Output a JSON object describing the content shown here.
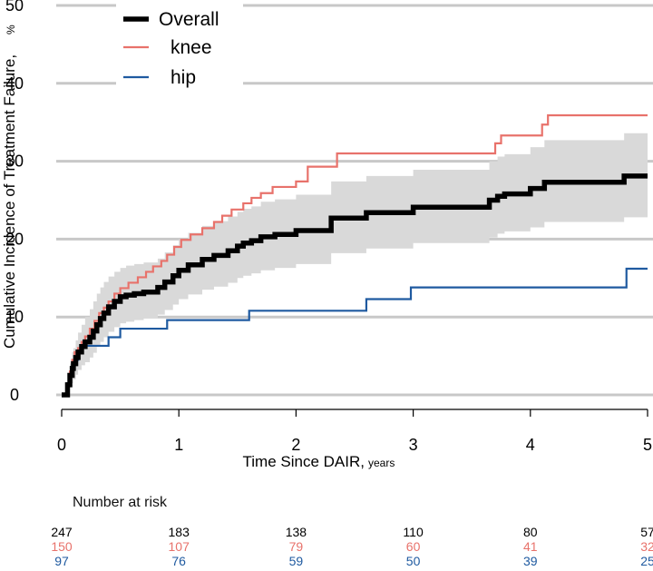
{
  "chart_data": {
    "type": "line",
    "ylabel": "Cumulative Incidence of Treatment Failure,",
    "ylabel_unit": "%",
    "xlabel": "Time Since DAIR,",
    "xlabel_unit": "years",
    "xlim": [
      0,
      5
    ],
    "ylim": [
      0,
      50
    ],
    "x_ticks": [
      "0",
      "1",
      "2",
      "3",
      "4",
      "5"
    ],
    "y_ticks": [
      "0",
      "10",
      "20",
      "30",
      "40",
      "50"
    ],
    "grid": "horizontal",
    "legend_position": "top-left",
    "series": [
      {
        "name": "Overall",
        "color": "#000000",
        "step": true,
        "x": [
          0,
          0.05,
          0.07,
          0.09,
          0.1,
          0.12,
          0.14,
          0.17,
          0.2,
          0.24,
          0.27,
          0.3,
          0.33,
          0.36,
          0.4,
          0.45,
          0.5,
          0.55,
          0.62,
          0.7,
          0.82,
          0.88,
          0.95,
          1.0,
          1.08,
          1.2,
          1.3,
          1.42,
          1.5,
          1.55,
          1.62,
          1.7,
          1.82,
          2.0,
          2.3,
          2.6,
          3.0,
          3.65,
          3.72,
          3.78,
          3.85,
          4.0,
          4.12,
          4.2,
          4.8,
          5.0
        ],
        "y": [
          0,
          1.3,
          2.5,
          3.4,
          4.0,
          4.8,
          5.5,
          6.2,
          6.8,
          7.4,
          8.2,
          9.0,
          9.8,
          10.5,
          11.3,
          12.0,
          12.6,
          12.8,
          13.0,
          13.2,
          13.8,
          14.5,
          15.3,
          16.0,
          16.7,
          17.4,
          17.9,
          18.5,
          19.1,
          19.5,
          19.8,
          20.3,
          20.6,
          21.1,
          22.7,
          23.4,
          24.1,
          25.0,
          25.5,
          25.8,
          25.8,
          26.5,
          27.3,
          27.3,
          28.1,
          28.1
        ],
        "ci_upper": [
          0,
          2.5,
          4.0,
          5.5,
          6.0,
          7.0,
          8.0,
          9.0,
          10.0,
          11.0,
          12.0,
          13.0,
          13.8,
          14.5,
          15.2,
          15.8,
          16.3,
          16.6,
          16.8,
          17.0,
          17.5,
          18.3,
          19.2,
          20.0,
          20.8,
          21.7,
          22.3,
          22.9,
          23.5,
          23.9,
          24.2,
          24.8,
          25.1,
          25.7,
          27.4,
          28.1,
          28.9,
          30.0,
          30.6,
          30.9,
          30.9,
          31.8,
          32.7,
          32.7,
          33.6,
          34.5
        ],
        "ci_lower": [
          0,
          0.3,
          1.0,
          1.5,
          2.0,
          2.6,
          3.2,
          3.8,
          4.2,
          4.8,
          5.4,
          6.2,
          6.8,
          7.4,
          8.1,
          8.7,
          9.2,
          9.4,
          9.6,
          9.8,
          10.3,
          10.9,
          11.6,
          12.3,
          12.9,
          13.5,
          13.9,
          14.4,
          15.0,
          15.3,
          15.6,
          16.0,
          16.3,
          16.8,
          18.2,
          18.8,
          19.5,
          20.2,
          20.7,
          21.0,
          21.0,
          21.5,
          22.2,
          22.2,
          22.8,
          22.8
        ]
      },
      {
        "name": "knee",
        "color": "#E8726B",
        "step": true,
        "x": [
          0,
          0.05,
          0.07,
          0.09,
          0.11,
          0.14,
          0.17,
          0.2,
          0.24,
          0.28,
          0.32,
          0.36,
          0.4,
          0.45,
          0.5,
          0.57,
          0.65,
          0.72,
          0.78,
          0.85,
          0.9,
          0.96,
          1.02,
          1.1,
          1.2,
          1.3,
          1.37,
          1.45,
          1.55,
          1.62,
          1.7,
          1.8,
          2.0,
          2.1,
          2.35,
          3.7,
          3.75,
          4.1,
          4.15,
          5.0
        ],
        "y": [
          0,
          1.5,
          3.0,
          4.5,
          5.5,
          6.0,
          6.8,
          7.5,
          8.5,
          9.5,
          10.5,
          11.2,
          12.0,
          13.0,
          13.7,
          14.4,
          15.1,
          15.8,
          16.5,
          17.2,
          18.0,
          19.0,
          19.9,
          20.6,
          21.4,
          22.2,
          23.0,
          23.8,
          24.6,
          25.3,
          25.9,
          26.7,
          27.4,
          29.3,
          31.0,
          32.3,
          33.3,
          34.7,
          35.9,
          35.9
        ]
      },
      {
        "name": "hip",
        "color": "#1F5AA0",
        "step": true,
        "x": [
          0,
          0.05,
          0.07,
          0.09,
          0.11,
          0.14,
          0.17,
          0.25,
          0.4,
          0.5,
          0.7,
          0.9,
          1.6,
          2.6,
          2.98,
          4.82,
          5.0
        ],
        "y": [
          0,
          1.5,
          2.5,
          3.5,
          4.5,
          5.5,
          6.3,
          6.3,
          7.4,
          8.5,
          8.5,
          9.6,
          10.8,
          12.3,
          13.8,
          16.2,
          16.2
        ]
      }
    ],
    "risk_table": {
      "title": "Number at risk",
      "times": [
        0,
        1,
        2,
        3,
        4,
        5
      ],
      "rows": [
        {
          "color": "#000000",
          "values": [
            "247",
            "183",
            "138",
            "110",
            "80",
            "57"
          ]
        },
        {
          "color": "#E8726B",
          "values": [
            "150",
            "107",
            "79",
            "60",
            "41",
            "32"
          ]
        },
        {
          "color": "#1F5AA0",
          "values": [
            "97",
            "76",
            "59",
            "50",
            "39",
            "25"
          ]
        }
      ]
    },
    "colors": {
      "grid": "#C8C8C8",
      "ci_band": "#D9D9D9",
      "axis": "#000000"
    }
  }
}
